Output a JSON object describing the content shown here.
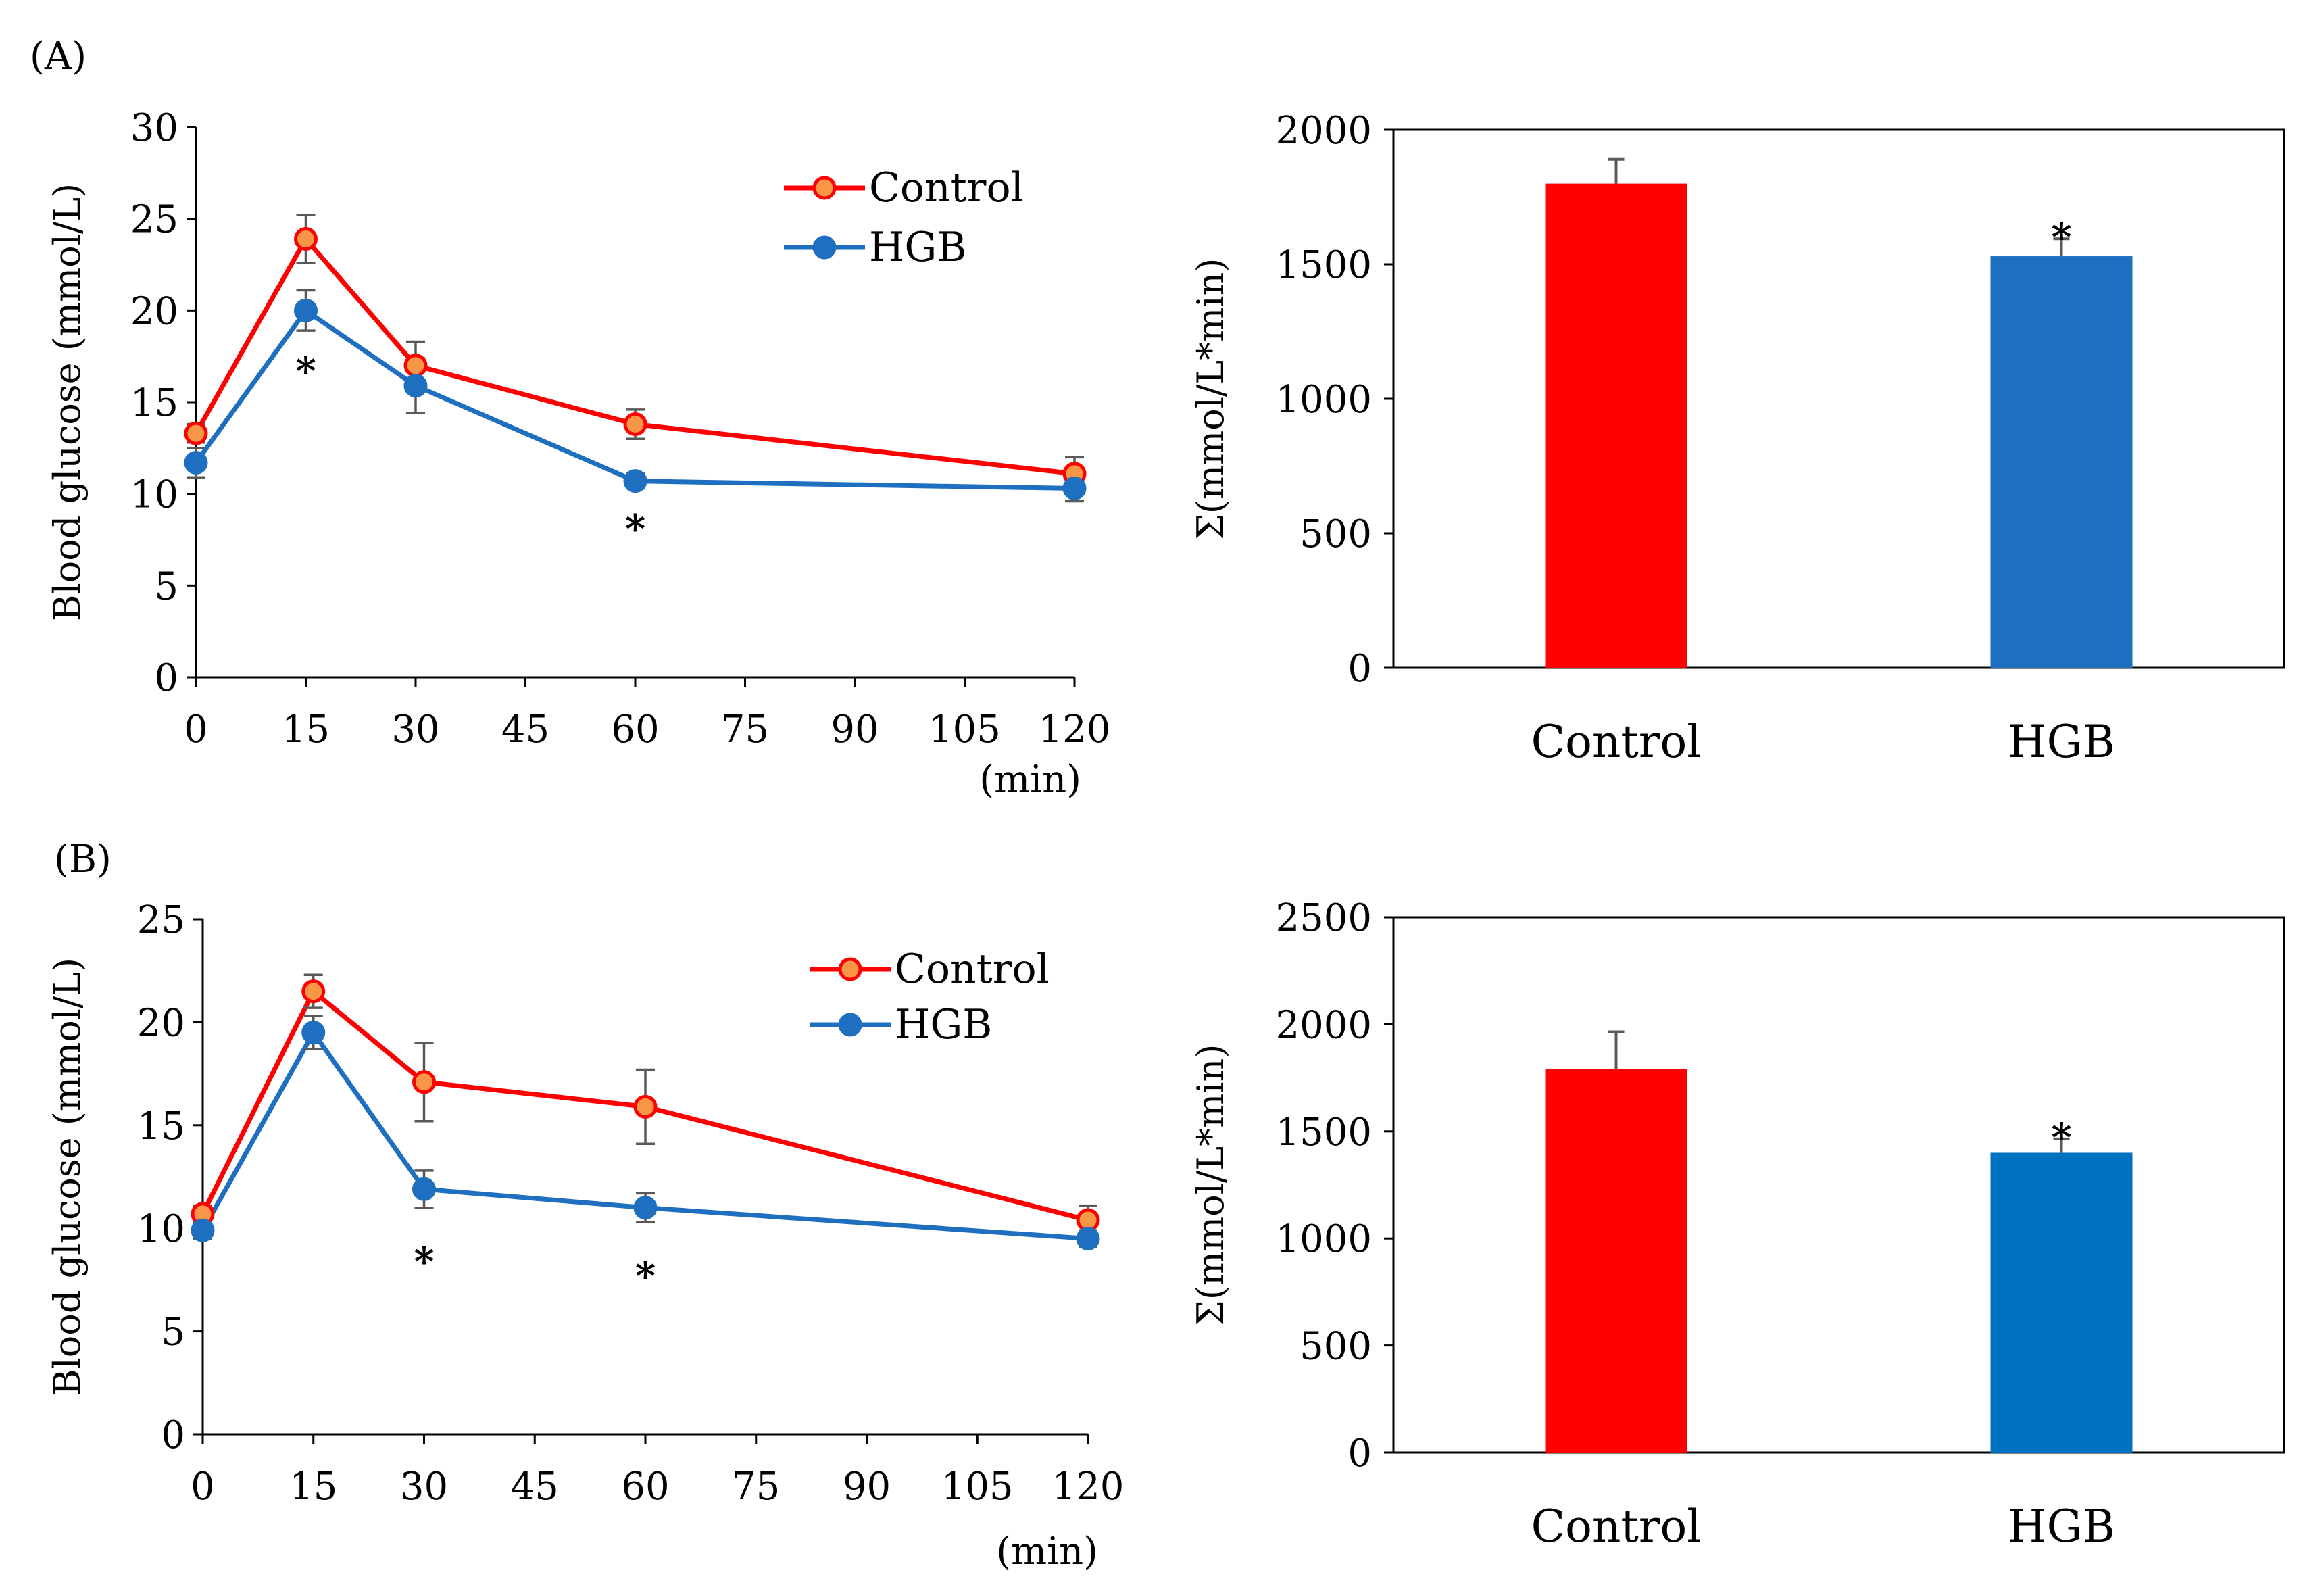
{
  "figure": {
    "panels": [
      "(A)",
      "(B)"
    ]
  },
  "colors": {
    "control": "#ff0000",
    "control_marker_fill": "#f79646",
    "hgb": "#1f6fc0",
    "hgb_bar_b": "#0070c0",
    "error_bar": "#595959",
    "axis": "#000000"
  },
  "chart_data": [
    {
      "id": "A-line",
      "type": "line",
      "panel": "(A)",
      "title": "",
      "xlabel": "(min)",
      "ylabel": "Blood glucose (mmol/L)",
      "xlim": [
        0,
        120
      ],
      "ylim": [
        0,
        30
      ],
      "xticks": [
        0,
        15,
        30,
        45,
        60,
        75,
        90,
        105,
        120
      ],
      "yticks": [
        0,
        5,
        10,
        15,
        20,
        25,
        30
      ],
      "grid": false,
      "legend": "top-right",
      "x": [
        0,
        15,
        30,
        60,
        120
      ],
      "series": [
        {
          "name": "Control",
          "values": [
            13.3,
            23.9,
            17.0,
            13.8,
            11.1
          ],
          "errors": [
            0.5,
            1.3,
            1.3,
            0.8,
            0.9
          ]
        },
        {
          "name": "HGB",
          "values": [
            11.7,
            20.0,
            15.9,
            10.7,
            10.3
          ],
          "errors": [
            0.8,
            1.1,
            1.5,
            0.4,
            0.7
          ]
        }
      ],
      "annotations": [
        {
          "x": 15,
          "text": "*"
        },
        {
          "x": 60,
          "text": "*"
        }
      ]
    },
    {
      "id": "A-bar",
      "type": "bar",
      "panel": "(A)",
      "title": "",
      "xlabel": "",
      "ylabel": "Σ(mmol/L*min)",
      "ylim": [
        0,
        2000
      ],
      "yticks": [
        0,
        500,
        1000,
        1500,
        2000
      ],
      "grid": false,
      "categories": [
        "Control",
        "HGB"
      ],
      "values": [
        1800,
        1530
      ],
      "errors": [
        90,
        65
      ],
      "annotations": [
        {
          "category": "HGB",
          "text": "*"
        }
      ]
    },
    {
      "id": "B-line",
      "type": "line",
      "panel": "(B)",
      "title": "",
      "xlabel": "(min)",
      "ylabel": "Blood glucose (mmol/L)",
      "xlim": [
        0,
        120
      ],
      "ylim": [
        0,
        25
      ],
      "xticks": [
        0,
        15,
        30,
        45,
        60,
        75,
        90,
        105,
        120
      ],
      "yticks": [
        0,
        5,
        10,
        15,
        20,
        25
      ],
      "grid": false,
      "legend": "top-right",
      "x": [
        0,
        15,
        30,
        60,
        120
      ],
      "series": [
        {
          "name": "Control",
          "values": [
            10.7,
            21.5,
            17.1,
            15.9,
            10.4
          ],
          "errors": [
            0.4,
            0.8,
            1.9,
            1.8,
            0.7
          ]
        },
        {
          "name": "HGB",
          "values": [
            9.9,
            19.5,
            11.9,
            11.0,
            9.5
          ],
          "errors": [
            0.4,
            0.8,
            0.9,
            0.7,
            0.4
          ]
        }
      ],
      "annotations": [
        {
          "x": 30,
          "text": "*"
        },
        {
          "x": 60,
          "text": "*"
        }
      ]
    },
    {
      "id": "B-bar",
      "type": "bar",
      "panel": "(B)",
      "title": "",
      "xlabel": "",
      "ylabel": "Σ(mmol/L*min)",
      "ylim": [
        0,
        2500
      ],
      "yticks": [
        0,
        500,
        1000,
        1500,
        2000,
        2500
      ],
      "grid": false,
      "categories": [
        "Control",
        "HGB"
      ],
      "values": [
        1790,
        1400
      ],
      "errors": [
        175,
        65
      ],
      "annotations": [
        {
          "category": "HGB",
          "text": "*"
        }
      ]
    }
  ]
}
